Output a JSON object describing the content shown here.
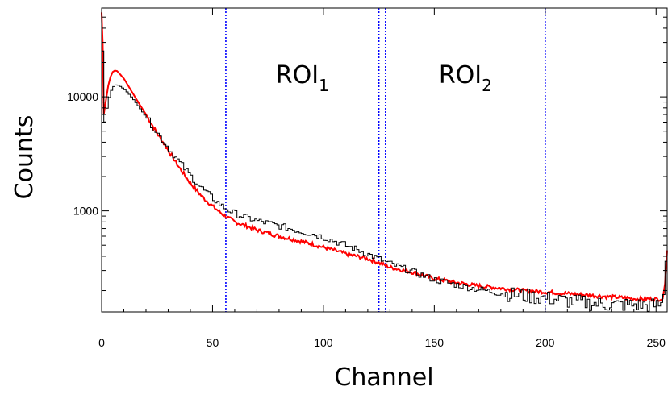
{
  "chart_data": {
    "type": "line",
    "title": "",
    "xlabel": "Channel",
    "ylabel": "Counts",
    "xlim": [
      0,
      255
    ],
    "ylim": [
      130,
      60000
    ],
    "yscale": "log",
    "xticks": [
      0,
      50,
      100,
      150,
      200,
      250
    ],
    "yticks": [
      {
        "value": 1000,
        "label": "1000"
      },
      {
        "value": 10000,
        "label": "10000"
      }
    ],
    "grid": false,
    "legend": "none",
    "regions": [
      {
        "label": "ROI",
        "subscript": "1",
        "x_start": 56,
        "x_end": 125,
        "color": "#0000ff"
      },
      {
        "label": "ROI",
        "subscript": "2",
        "x_start": 128,
        "x_end": 200,
        "color": "#0000ff"
      }
    ],
    "series": [
      {
        "color": "#ff0000",
        "style": "line",
        "points": [
          [
            0,
            55000
          ],
          [
            0.6,
            25000
          ],
          [
            1,
            7000
          ],
          [
            2,
            9500
          ],
          [
            3,
            12500
          ],
          [
            4,
            15000
          ],
          [
            5,
            16500
          ],
          [
            6,
            17000
          ],
          [
            7,
            16800
          ],
          [
            8,
            16000
          ],
          [
            10,
            14500
          ],
          [
            12,
            12500
          ],
          [
            15,
            10000
          ],
          [
            20,
            7000
          ],
          [
            25,
            4800
          ],
          [
            30,
            3400
          ],
          [
            35,
            2400
          ],
          [
            40,
            1750
          ],
          [
            45,
            1350
          ],
          [
            50,
            1100
          ],
          [
            55,
            920
          ],
          [
            60,
            800
          ],
          [
            65,
            740
          ],
          [
            70,
            680
          ],
          [
            75,
            640
          ],
          [
            80,
            600
          ],
          [
            85,
            570
          ],
          [
            90,
            540
          ],
          [
            95,
            510
          ],
          [
            100,
            480
          ],
          [
            105,
            450
          ],
          [
            110,
            420
          ],
          [
            115,
            400
          ],
          [
            120,
            380
          ],
          [
            125,
            350
          ],
          [
            130,
            320
          ],
          [
            140,
            290
          ],
          [
            150,
            255
          ],
          [
            160,
            235
          ],
          [
            170,
            220
          ],
          [
            180,
            210
          ],
          [
            190,
            200
          ],
          [
            200,
            195
          ],
          [
            210,
            188
          ],
          [
            220,
            182
          ],
          [
            230,
            176
          ],
          [
            240,
            170
          ],
          [
            250,
            168
          ],
          [
            253,
            170
          ],
          [
            254,
            230
          ],
          [
            255,
            450
          ]
        ]
      },
      {
        "color": "#000000",
        "style": "step",
        "points": [
          [
            0,
            50000
          ],
          [
            0.6,
            22000
          ],
          [
            1,
            5200
          ],
          [
            2,
            7000
          ],
          [
            3,
            9000
          ],
          [
            4,
            10800
          ],
          [
            5,
            12000
          ],
          [
            6,
            12600
          ],
          [
            7,
            12800
          ],
          [
            8,
            12500
          ],
          [
            10,
            11800
          ],
          [
            12,
            10800
          ],
          [
            15,
            9200
          ],
          [
            20,
            6700
          ],
          [
            25,
            4900
          ],
          [
            30,
            3600
          ],
          [
            35,
            2700
          ],
          [
            40,
            2050
          ],
          [
            45,
            1600
          ],
          [
            50,
            1300
          ],
          [
            55,
            1080
          ],
          [
            60,
            950
          ],
          [
            65,
            880
          ],
          [
            70,
            820
          ],
          [
            75,
            780
          ],
          [
            80,
            740
          ],
          [
            85,
            700
          ],
          [
            90,
            660
          ],
          [
            95,
            630
          ],
          [
            100,
            590
          ],
          [
            105,
            545
          ],
          [
            110,
            500
          ],
          [
            115,
            460
          ],
          [
            120,
            420
          ],
          [
            125,
            380
          ],
          [
            130,
            345
          ],
          [
            140,
            295
          ],
          [
            150,
            250
          ],
          [
            160,
            225
          ],
          [
            170,
            205
          ],
          [
            180,
            190
          ],
          [
            190,
            180
          ],
          [
            200,
            172
          ],
          [
            210,
            162
          ],
          [
            220,
            155
          ],
          [
            230,
            150
          ],
          [
            240,
            150
          ],
          [
            250,
            148
          ],
          [
            253,
            152
          ],
          [
            254,
            260
          ],
          [
            255,
            520
          ]
        ]
      }
    ]
  }
}
